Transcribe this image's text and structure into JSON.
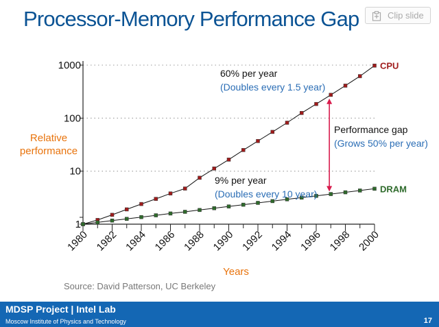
{
  "slide": {
    "title": "Processor-Memory Performance Gap",
    "clip_label": "Clip slide",
    "footer_title": "MDSP Project | Intel Lab",
    "footer_subtitle": "Moscow Institute of Physics and Technology",
    "page_number": "17",
    "source": "Source: David Patterson, UC Berkeley"
  },
  "colors": {
    "title": "#0b5394",
    "accent_orange": "#e8730c",
    "accent_blue": "#2a6db5",
    "cpu_series": "#a01c1c",
    "dram_series": "#2f6b2c",
    "gap_arrow": "#d81b4c",
    "footer_bg": "#1467b4",
    "grid": "#999999"
  },
  "chart_data": {
    "type": "line",
    "title": "",
    "xlabel": "Years",
    "ylabel": "Relative performance",
    "yscale": "log",
    "ylim": [
      1,
      1000
    ],
    "xlim": [
      1980,
      2000
    ],
    "yticks": [
      1,
      10,
      100,
      1000
    ],
    "ytick_labels": [
      "1",
      "10",
      "100",
      "1000"
    ],
    "xticks": [
      1980,
      1982,
      1984,
      1986,
      1988,
      1990,
      1992,
      1994,
      1996,
      1998,
      2000
    ],
    "xtick_labels": [
      "1980",
      "1982",
      "1984",
      "1986",
      "1988",
      "1990",
      "1992",
      "1994",
      "1996",
      "1998",
      "2000"
    ],
    "grid": "horizontal dotted",
    "x": [
      1980,
      1981,
      1982,
      1983,
      1984,
      1985,
      1986,
      1987,
      1988,
      1989,
      1990,
      1991,
      1992,
      1993,
      1994,
      1995,
      1996,
      1997,
      1998,
      1999,
      2000
    ],
    "series": [
      {
        "name": "CPU",
        "values": [
          1,
          1.2,
          1.5,
          1.9,
          2.4,
          3.0,
          3.8,
          4.7,
          7.5,
          11.2,
          16.5,
          25,
          37,
          55,
          82,
          125,
          185,
          275,
          410,
          620,
          980
        ]
      },
      {
        "name": "DRAM",
        "values": [
          1,
          1.08,
          1.17,
          1.26,
          1.36,
          1.47,
          1.59,
          1.71,
          1.85,
          2.0,
          2.16,
          2.33,
          2.52,
          2.72,
          2.94,
          3.17,
          3.42,
          3.7,
          3.99,
          4.31,
          4.66
        ]
      }
    ],
    "annotations": {
      "cpu_rate": "60% per year",
      "cpu_note": "(Doubles every 1.5 year)",
      "dram_rate": "9% per year",
      "dram_note": "(Doubles every 10 year)",
      "gap_title": "Performance gap",
      "gap_note": "(Grows 50% per year)",
      "gap_year": 1996.9
    }
  }
}
